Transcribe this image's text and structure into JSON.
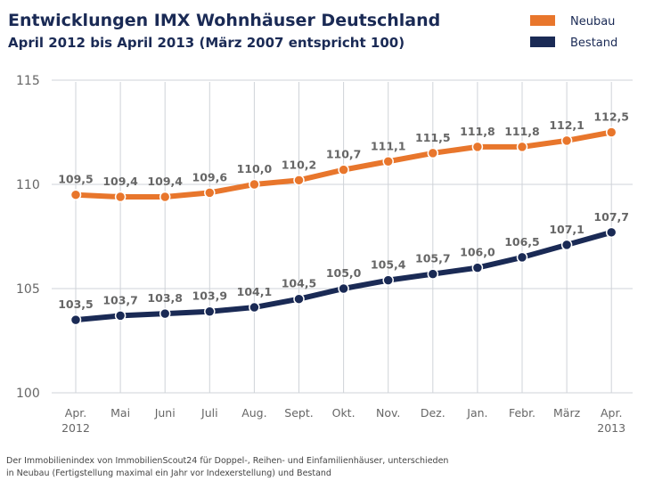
{
  "chart_data": {
    "type": "line",
    "title": "Entwicklungen IMX Wohnhäuser Deutschland",
    "subtitle": "April 2012 bis April 2013 (März 2007 entspricht 100)",
    "categories": [
      "Apr.\n2012",
      "Mai",
      "Juni",
      "Juli",
      "Aug.",
      "Sept.",
      "Okt.",
      "Nov.",
      "Dez.",
      "Jan.",
      "Febr.",
      "März",
      "Apr.\n2013"
    ],
    "series": [
      {
        "name": "Neubau",
        "color": "#e8762c",
        "values": [
          109.5,
          109.4,
          109.4,
          109.6,
          110.0,
          110.2,
          110.7,
          111.1,
          111.5,
          111.8,
          111.8,
          112.1,
          112.5
        ],
        "labels": [
          "109,5",
          "109,4",
          "109,4",
          "109,6",
          "110,0",
          "110,2",
          "110,7",
          "111,1",
          "111,5",
          "111,8",
          "111,8",
          "112,1",
          "112,5"
        ]
      },
      {
        "name": "Bestand",
        "color": "#1a2a55",
        "values": [
          103.5,
          103.7,
          103.8,
          103.9,
          104.1,
          104.5,
          105.0,
          105.4,
          105.7,
          106.0,
          106.5,
          107.1,
          107.7
        ],
        "labels": [
          "103,5",
          "103,7",
          "103,8",
          "103,9",
          "104,1",
          "104,5",
          "105,0",
          "105,4",
          "105,7",
          "106,0",
          "106,5",
          "107,1",
          "107,7"
        ]
      }
    ],
    "ylim": [
      100,
      115
    ],
    "yticks": [
      100,
      105,
      110,
      115
    ],
    "grid": true,
    "legend_position": "top-right"
  },
  "footnote": {
    "line1": "Der Immobilienindex von ImmobilienScout24 für Doppel-, Reihen- und Einfamilienhäuser, unterschieden",
    "line2": "in Neubau (Fertigstellung maximal ein Jahr vor Indexerstellung) und Bestand"
  }
}
